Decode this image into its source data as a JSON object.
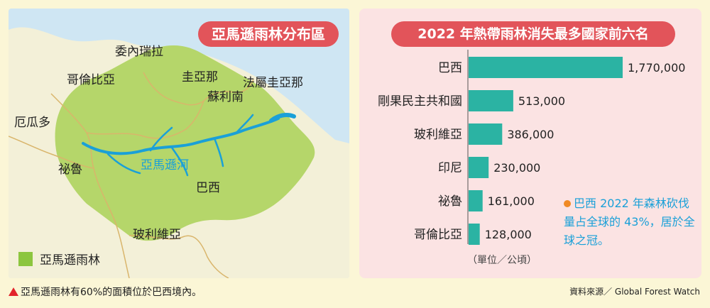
{
  "map": {
    "title": "亞馬遜雨林分布區",
    "labels": {
      "venezuela": "委內瑞拉",
      "colombia": "哥倫比亞",
      "guyana": "圭亞那",
      "french_guiana": "法屬圭亞那",
      "suriname": "蘇利南",
      "ecuador": "厄瓜多",
      "peru": "祕魯",
      "brazil": "巴西",
      "bolivia": "玻利維亞",
      "amazon_river": "亞馬遜河"
    },
    "legend_label": "亞馬遜雨林",
    "colors": {
      "ocean": "#cfe6f3",
      "land": "#f3f0d8",
      "rainforest": "#b5d66a",
      "river": "#1aa0d8",
      "border": "#d9b56b"
    }
  },
  "chart_data": {
    "type": "bar",
    "orientation": "horizontal",
    "title": "2022 年熱帶雨林消失最多國家前六名",
    "categories": [
      "巴西",
      "剛果民主共和國",
      "玻利維亞",
      "印尼",
      "祕魯",
      "哥倫比亞"
    ],
    "values": [
      1770000,
      513000,
      386000,
      230000,
      161000,
      128000
    ],
    "value_labels": [
      "1,770,000",
      "513,000",
      "386,000",
      "230,000",
      "161,000",
      "128,000"
    ],
    "unit": "（單位／公頃）",
    "bar_color": "#2bb3a3",
    "xlim": [
      0,
      1770000
    ],
    "grid": false,
    "note": "巴西 2022 年森林砍伐量占全球的 43%，居於全球之冠。"
  },
  "footer": {
    "caption": "亞馬遜雨林有60%的面積位於巴西境內。",
    "source": "資料來源／ Global Forest Watch"
  }
}
